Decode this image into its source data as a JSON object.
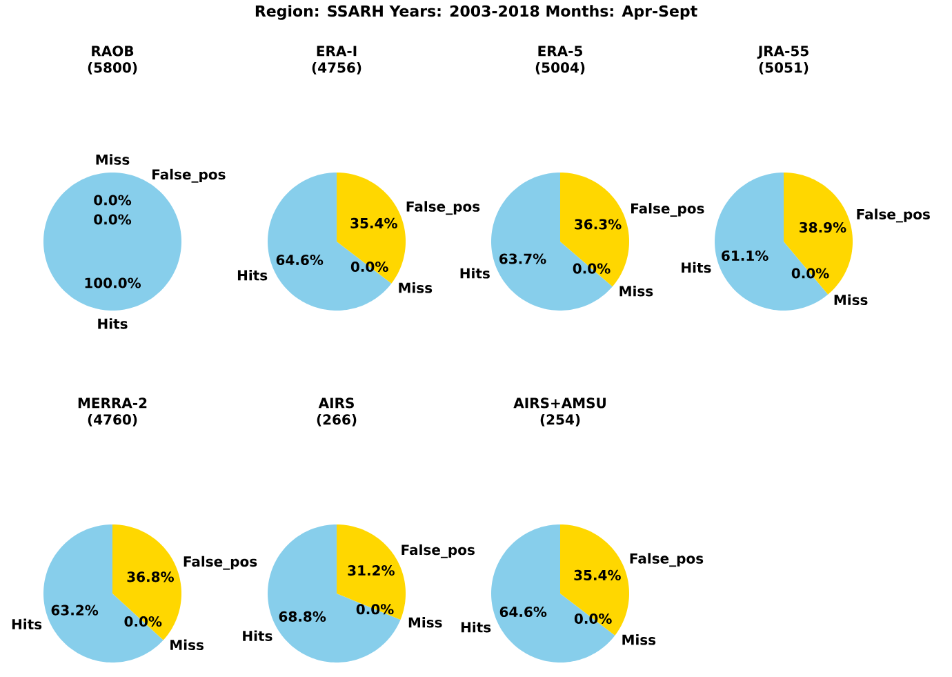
{
  "chart_data": [
    {
      "type": "pie",
      "title": "RAOB",
      "subtitle": "(5800)",
      "annotations": [
        "Region: SSARH  Years: 2003-2018  Months: Apr-Sept"
      ],
      "categories": [
        "Hits",
        "Miss",
        "False_pos"
      ],
      "values": [
        100.0,
        0.0,
        0.0
      ],
      "value_labels": [
        "100.0%",
        "0.0%",
        "0.0%"
      ],
      "colors": [
        "#87ceeb",
        "#d3d3d3",
        "#ffd700"
      ]
    },
    {
      "type": "pie",
      "title": "ERA-I",
      "subtitle": "(4756)",
      "categories": [
        "Hits",
        "Miss",
        "False_pos"
      ],
      "values": [
        64.6,
        0.0,
        35.4
      ],
      "value_labels": [
        "64.6%",
        "0.0%",
        "35.4%"
      ],
      "colors": [
        "#87ceeb",
        "#d3d3d3",
        "#ffd700"
      ]
    },
    {
      "type": "pie",
      "title": "ERA-5",
      "subtitle": "(5004)",
      "categories": [
        "Hits",
        "Miss",
        "False_pos"
      ],
      "values": [
        63.7,
        0.0,
        36.3
      ],
      "value_labels": [
        "63.7%",
        "0.0%",
        "36.3%"
      ],
      "colors": [
        "#87ceeb",
        "#d3d3d3",
        "#ffd700"
      ]
    },
    {
      "type": "pie",
      "title": "JRA-55",
      "subtitle": "(5051)",
      "categories": [
        "Hits",
        "Miss",
        "False_pos"
      ],
      "values": [
        61.1,
        0.0,
        38.9
      ],
      "value_labels": [
        "61.1%",
        "0.0%",
        "38.9%"
      ],
      "colors": [
        "#87ceeb",
        "#d3d3d3",
        "#ffd700"
      ]
    },
    {
      "type": "pie",
      "title": "MERRA-2",
      "subtitle": "(4760)",
      "categories": [
        "Hits",
        "Miss",
        "False_pos"
      ],
      "values": [
        63.2,
        0.0,
        36.8
      ],
      "value_labels": [
        "63.2%",
        "0.0%",
        "36.8%"
      ],
      "colors": [
        "#87ceeb",
        "#d3d3d3",
        "#ffd700"
      ]
    },
    {
      "type": "pie",
      "title": "AIRS",
      "subtitle": "(266)",
      "categories": [
        "Hits",
        "Miss",
        "False_pos"
      ],
      "values": [
        68.8,
        0.0,
        31.2
      ],
      "value_labels": [
        "68.8%",
        "0.0%",
        "31.2%"
      ],
      "colors": [
        "#87ceeb",
        "#d3d3d3",
        "#ffd700"
      ]
    },
    {
      "type": "pie",
      "title": "AIRS+AMSU",
      "subtitle": "(254)",
      "categories": [
        "Hits",
        "Miss",
        "False_pos"
      ],
      "values": [
        64.6,
        0.0,
        35.4
      ],
      "value_labels": [
        "64.6%",
        "0.0%",
        "35.4%"
      ],
      "colors": [
        "#87ceeb",
        "#d3d3d3",
        "#ffd700"
      ]
    }
  ]
}
